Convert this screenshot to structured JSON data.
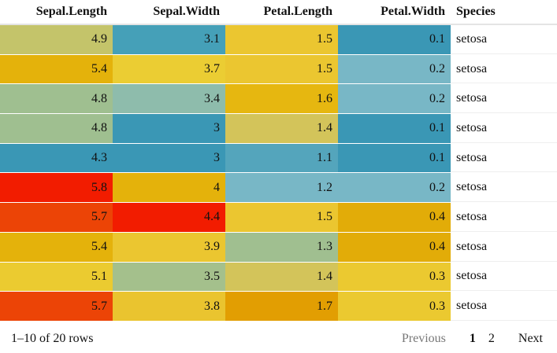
{
  "table": {
    "columns": [
      {
        "label": "Sepal.Length",
        "align": "right"
      },
      {
        "label": "Sepal.Width",
        "align": "right"
      },
      {
        "label": "Petal.Length",
        "align": "right"
      },
      {
        "label": "Petal.Width",
        "align": "right"
      },
      {
        "label": "Species",
        "align": "left"
      }
    ],
    "rows": [
      {
        "cells": [
          "4.9",
          "3.1",
          "1.5",
          "0.1",
          "setosa"
        ],
        "colors": [
          "#c4c46a",
          "#45a0b8",
          "#ebc630",
          "#3a97b5"
        ]
      },
      {
        "cells": [
          "5.4",
          "3.7",
          "1.5",
          "0.2",
          "setosa"
        ],
        "colors": [
          "#e4b20b",
          "#ebcd33",
          "#ebc630",
          "#78b7c6"
        ]
      },
      {
        "cells": [
          "4.8",
          "3.4",
          "1.6",
          "0.2",
          "setosa"
        ],
        "colors": [
          "#9fbf90",
          "#8ebcac",
          "#e6b710",
          "#78b7c6"
        ]
      },
      {
        "cells": [
          "4.8",
          "3",
          "1.4",
          "0.1",
          "setosa"
        ],
        "colors": [
          "#9fbf90",
          "#3a97b5",
          "#d3c45a",
          "#3a97b5"
        ]
      },
      {
        "cells": [
          "4.3",
          "3",
          "1.1",
          "0.1",
          "setosa"
        ],
        "colors": [
          "#3a97b5",
          "#3a97b5",
          "#54a5bc",
          "#3a97b5"
        ]
      },
      {
        "cells": [
          "5.8",
          "4",
          "1.2",
          "0.2",
          "setosa"
        ],
        "colors": [
          "#f21c00",
          "#e4b20b",
          "#78b7c6",
          "#78b7c6"
        ]
      },
      {
        "cells": [
          "5.7",
          "4.4",
          "1.5",
          "0.4",
          "setosa"
        ],
        "colors": [
          "#ec4406",
          "#f21c00",
          "#ebc630",
          "#e2ac08"
        ]
      },
      {
        "cells": [
          "5.4",
          "3.9",
          "1.3",
          "0.4",
          "setosa"
        ],
        "colors": [
          "#e4b20b",
          "#ebc630",
          "#a0bf90",
          "#e2ac08"
        ]
      },
      {
        "cells": [
          "5.1",
          "3.5",
          "1.4",
          "0.3",
          "setosa"
        ],
        "colors": [
          "#ebcb30",
          "#a4c08c",
          "#d3c45a",
          "#ebc930"
        ]
      },
      {
        "cells": [
          "5.7",
          "3.8",
          "1.7",
          "0.3",
          "setosa"
        ],
        "colors": [
          "#ec4406",
          "#eac42f",
          "#e29e02",
          "#ebc930"
        ]
      }
    ]
  },
  "footer": {
    "page_info": "1–10 of 20 rows",
    "previous_label": "Previous",
    "pages": [
      "1",
      "2"
    ],
    "current_page": "1",
    "next_label": "Next"
  }
}
